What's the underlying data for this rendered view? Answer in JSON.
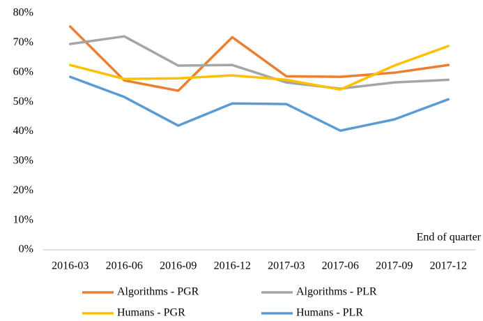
{
  "chart_data": {
    "type": "line",
    "x_label": "End of quarter",
    "categories": [
      "2016-03",
      "2016-06",
      "2016-09",
      "2016-12",
      "2017-03",
      "2017-06",
      "2017-09",
      "2017-12"
    ],
    "series": [
      {
        "name": "Algorithms - PGR",
        "color": "#ed7d31",
        "values": [
          75.5,
          57.3,
          53.8,
          71.9,
          58.7,
          58.5,
          59.9,
          62.5
        ]
      },
      {
        "name": "Algorithms - PLR",
        "color": "#a5a5a5",
        "values": [
          69.6,
          72.2,
          62.3,
          62.5,
          56.6,
          54.5,
          56.6,
          57.5
        ]
      },
      {
        "name": "Humans - PGR",
        "color": "#ffc000",
        "values": [
          62.5,
          57.8,
          58.0,
          59.0,
          57.5,
          54.2,
          62.3,
          68.9
        ]
      },
      {
        "name": "Humans - PLR",
        "color": "#5b9bd5",
        "values": [
          58.5,
          51.7,
          42.0,
          49.5,
          49.3,
          40.3,
          44.1,
          50.9
        ]
      }
    ],
    "ylim": [
      0,
      80
    ],
    "yticks": [
      {
        "value": 0,
        "label": "0%"
      },
      {
        "value": 10,
        "label": "10%"
      },
      {
        "value": 20,
        "label": "20%"
      },
      {
        "value": 30,
        "label": "30%"
      },
      {
        "value": 40,
        "label": "40%"
      },
      {
        "value": 50,
        "label": "50%"
      },
      {
        "value": 60,
        "label": "60%"
      },
      {
        "value": 70,
        "label": "70%"
      },
      {
        "value": 80,
        "label": "80%"
      }
    ],
    "grid": false,
    "legend": "bottom"
  }
}
